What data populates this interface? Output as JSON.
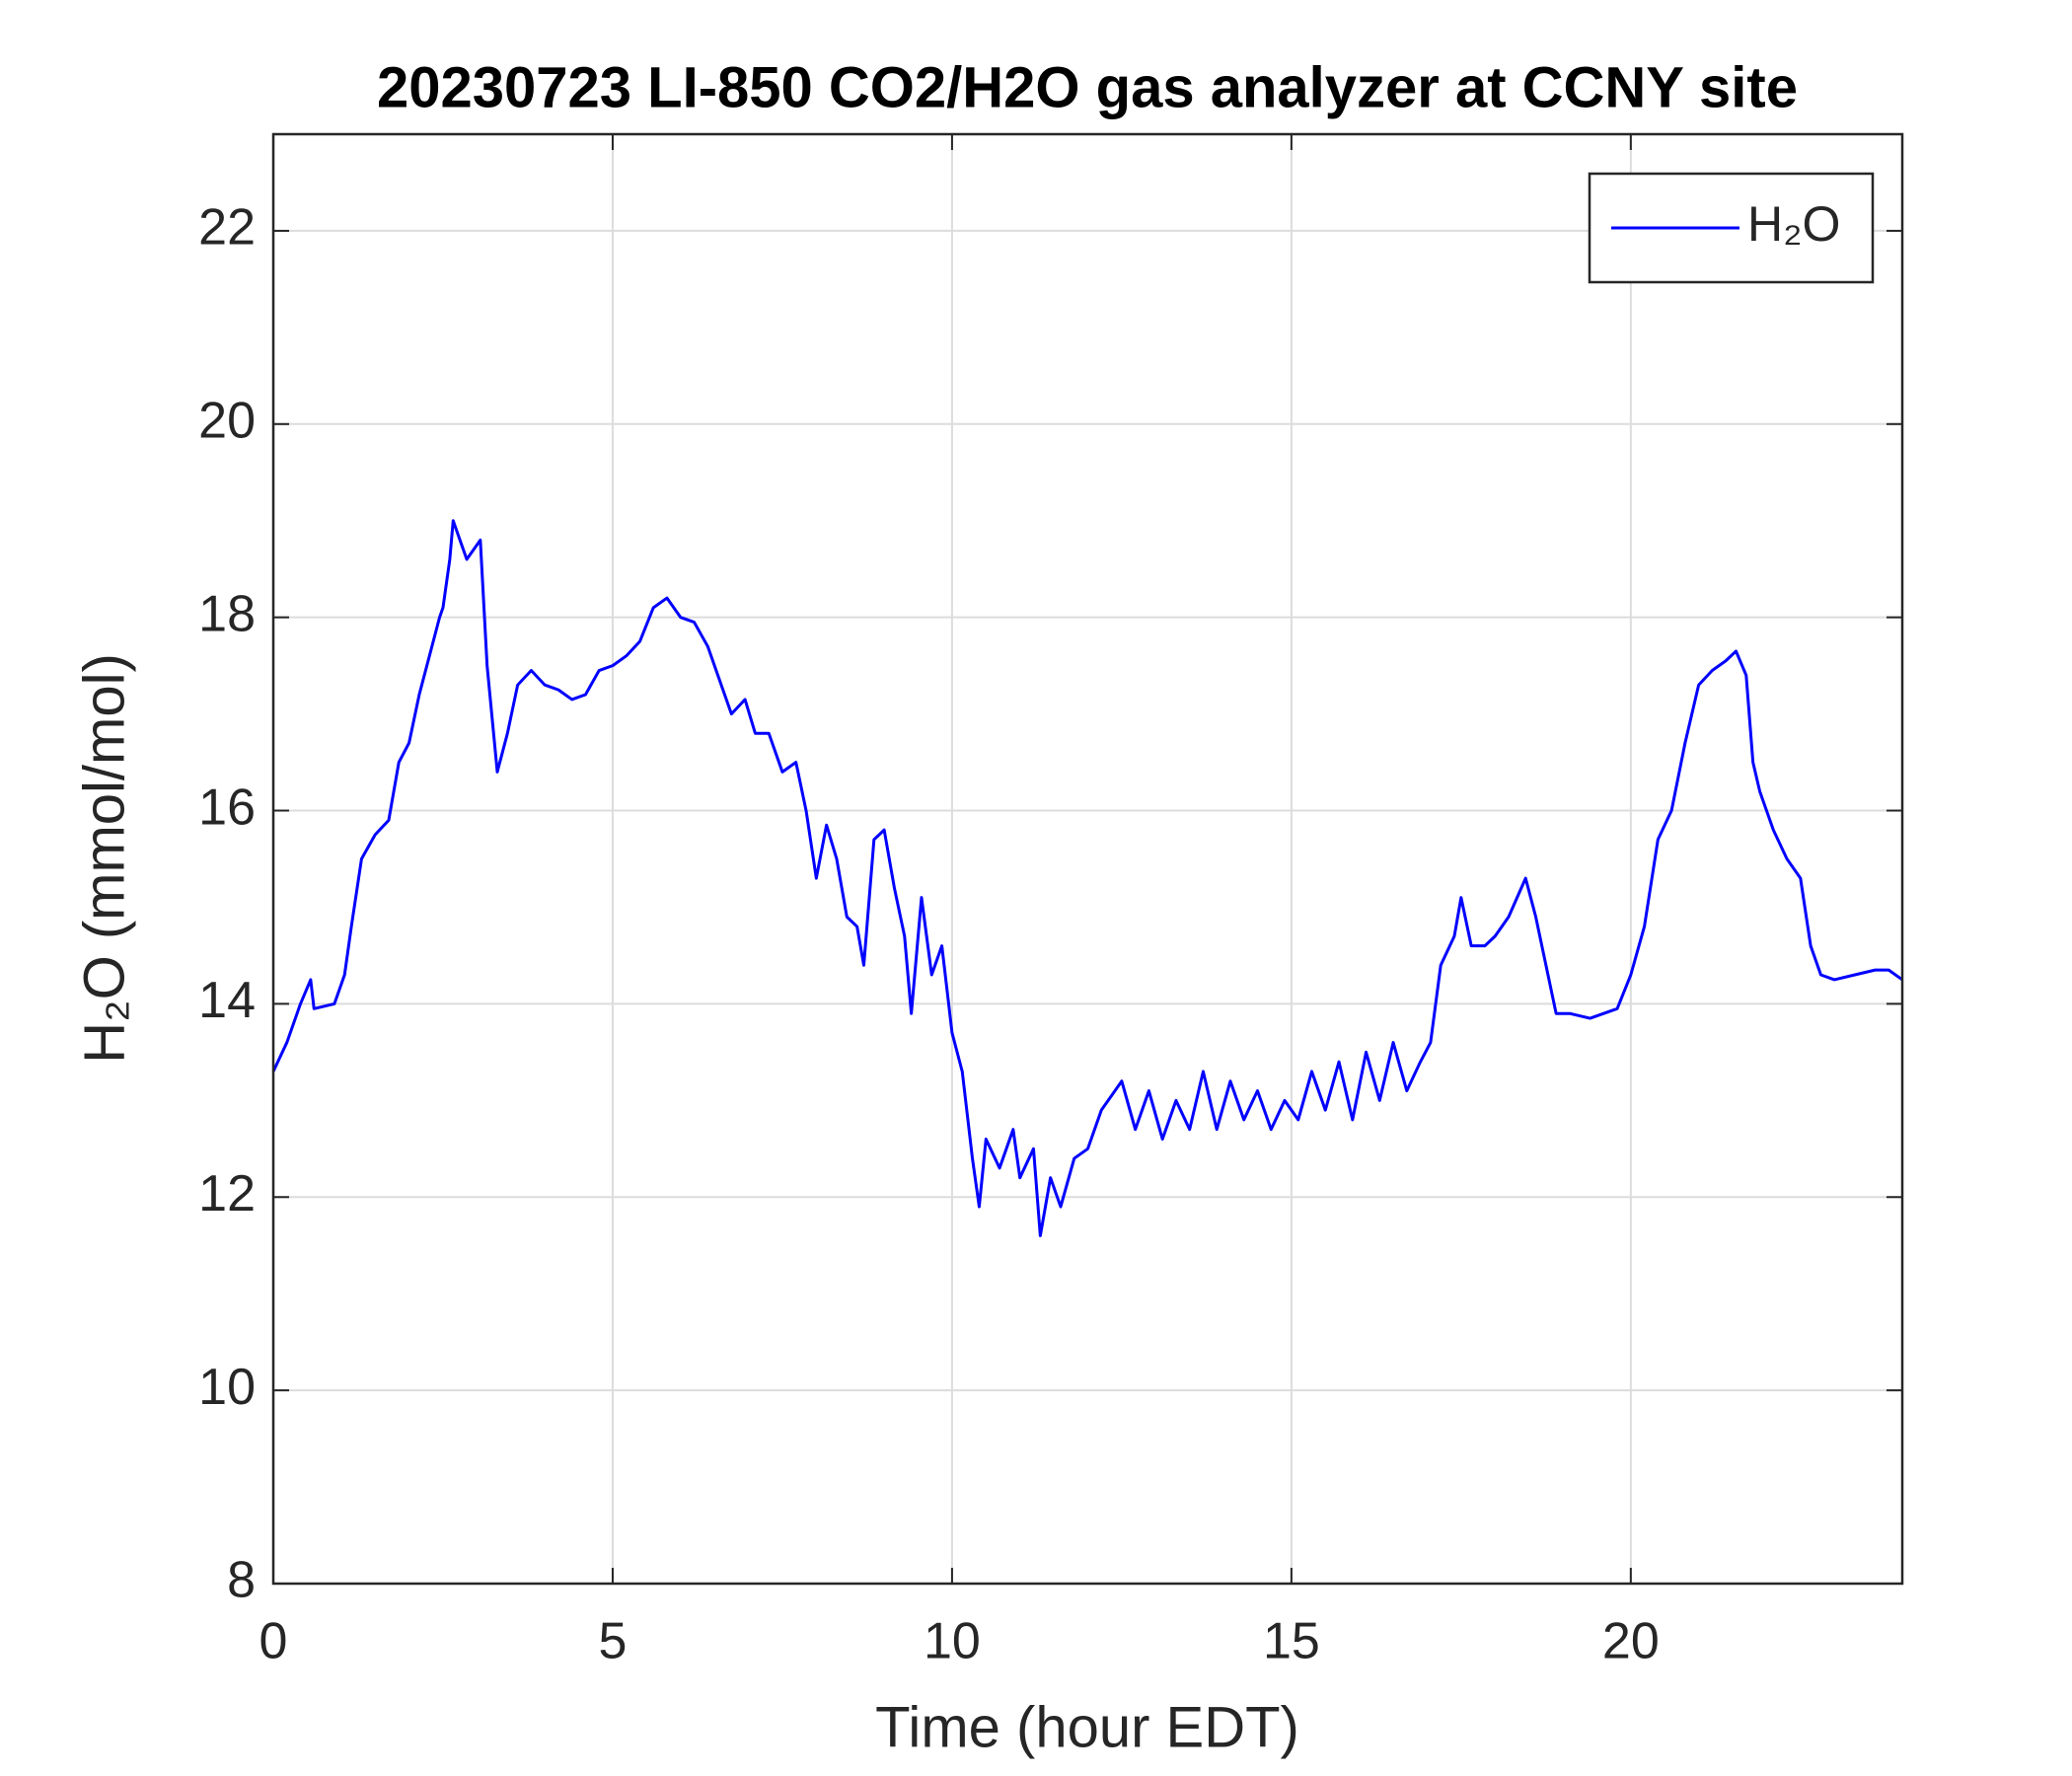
{
  "chart_data": {
    "type": "line",
    "title": "20230723 LI-850 CO2/H2O gas analyzer at CCNY site",
    "x_label": "Time (hour EDT)",
    "y_label": "H₂O (mmol/mol)",
    "xlim": [
      0,
      24
    ],
    "ylim": [
      8,
      23
    ],
    "xticks": [
      0,
      5,
      10,
      15,
      20
    ],
    "yticks": [
      8,
      10,
      12,
      14,
      16,
      18,
      20,
      22
    ],
    "grid": true,
    "legend": "upper right",
    "x": [
      0,
      0.2,
      0.4,
      0.55,
      0.6,
      0.9,
      1.05,
      1.15,
      1.3,
      1.5,
      1.7,
      1.85,
      2.0,
      2.15,
      2.3,
      2.45,
      2.5,
      2.6,
      2.65,
      2.75,
      2.85,
      3.0,
      3.05,
      3.15,
      3.3,
      3.45,
      3.6,
      3.8,
      4.0,
      4.2,
      4.4,
      4.6,
      4.8,
      5.0,
      5.2,
      5.4,
      5.6,
      5.8,
      6.0,
      6.2,
      6.4,
      6.6,
      6.75,
      6.95,
      7.1,
      7.3,
      7.5,
      7.7,
      7.85,
      8.0,
      8.15,
      8.3,
      8.45,
      8.6,
      8.7,
      8.85,
      9.0,
      9.15,
      9.3,
      9.4,
      9.55,
      9.7,
      9.85,
      10.0,
      10.15,
      10.3,
      10.4,
      10.5,
      10.7,
      10.9,
      11.0,
      11.2,
      11.3,
      11.45,
      11.6,
      11.8,
      12.0,
      12.2,
      12.5,
      12.7,
      12.9,
      13.1,
      13.3,
      13.5,
      13.7,
      13.9,
      14.1,
      14.3,
      14.5,
      14.7,
      14.9,
      15.1,
      15.3,
      15.5,
      15.7,
      15.9,
      16.1,
      16.3,
      16.5,
      16.7,
      16.9,
      17.05,
      17.2,
      17.4,
      17.5,
      17.65,
      17.85,
      18.0,
      18.2,
      18.45,
      18.6,
      18.75,
      18.9,
      19.1,
      19.4,
      19.6,
      19.8,
      20.0,
      20.2,
      20.4,
      20.6,
      20.8,
      21.0,
      21.2,
      21.4,
      21.55,
      21.7,
      21.8,
      21.9,
      22.1,
      22.3,
      22.5,
      22.65,
      22.8,
      23.0,
      23.3,
      23.6,
      23.8,
      24.0
    ],
    "series": [
      {
        "name": "H₂O",
        "color": "#0000ff",
        "values": [
          13.3,
          13.6,
          14.0,
          14.25,
          13.95,
          14.0,
          14.3,
          14.8,
          15.5,
          15.75,
          15.9,
          16.5,
          16.7,
          17.2,
          17.6,
          18.0,
          18.1,
          18.6,
          19.0,
          18.8,
          18.6,
          18.75,
          18.8,
          17.5,
          16.4,
          16.8,
          17.3,
          17.45,
          17.3,
          17.25,
          17.15,
          17.2,
          17.45,
          17.5,
          17.6,
          17.75,
          18.1,
          18.2,
          18.0,
          17.95,
          17.7,
          17.3,
          17.0,
          17.15,
          16.8,
          16.8,
          16.4,
          16.5,
          16.0,
          15.3,
          15.85,
          15.5,
          14.9,
          14.8,
          14.4,
          15.7,
          15.8,
          15.2,
          14.7,
          13.9,
          15.1,
          14.3,
          14.6,
          13.7,
          13.3,
          12.4,
          11.9,
          12.6,
          12.3,
          12.7,
          12.2,
          12.5,
          11.6,
          12.2,
          11.9,
          12.4,
          12.5,
          12.9,
          13.2,
          12.7,
          13.1,
          12.6,
          13.0,
          12.7,
          13.3,
          12.7,
          13.2,
          12.8,
          13.1,
          12.7,
          13.0,
          12.8,
          13.3,
          12.9,
          13.4,
          12.8,
          13.5,
          13.0,
          13.6,
          13.1,
          13.4,
          13.6,
          14.4,
          14.7,
          15.1,
          14.6,
          14.6,
          14.7,
          14.9,
          15.3,
          14.9,
          14.4,
          13.9,
          13.9,
          13.85,
          13.9,
          13.95,
          14.3,
          14.8,
          15.7,
          16.0,
          16.7,
          17.3,
          17.45,
          17.55,
          17.65,
          17.4,
          16.5,
          16.2,
          15.8,
          15.5,
          15.3,
          14.6,
          14.3,
          14.25,
          14.3,
          14.35,
          14.35,
          14.25
        ]
      }
    ]
  }
}
